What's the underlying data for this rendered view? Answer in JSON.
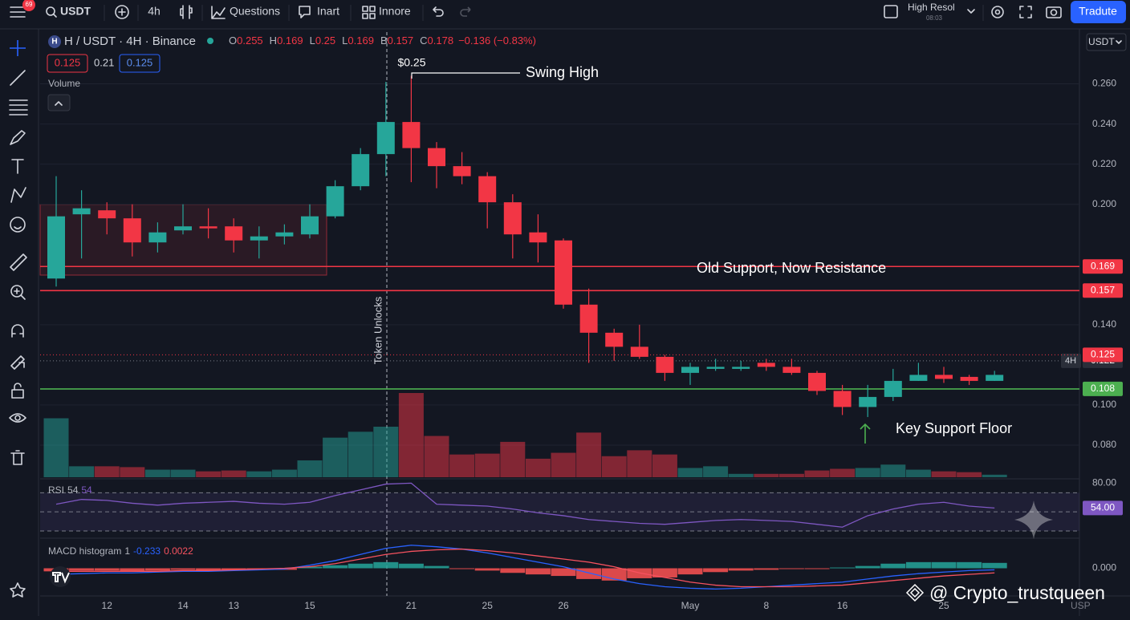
{
  "toolbar": {
    "badge": "69",
    "symbol": "USDT",
    "interval": "4h",
    "items": [
      "Questions",
      "Inart",
      "Innore"
    ],
    "layout": "High Resol",
    "time": "08:03",
    "button": "Tradute"
  },
  "chart_data": {
    "type": "candlestick",
    "title": "H / USDT · 4H · Binance",
    "ohlc": [
      {
        "key": "O",
        "value": "0.255"
      },
      {
        "key": "H",
        "value": "0.169"
      },
      {
        "key": "L",
        "value": "0.25"
      },
      {
        "key": "L",
        "value": "0.169"
      },
      {
        "key": "B",
        "value": "0.157"
      },
      {
        "key": "C",
        "value": "0.178"
      }
    ],
    "change": "−0.136 (−0.83%)",
    "indicator_boxes": [
      "0.125",
      "0.21",
      "0.125"
    ],
    "currency": "USDT",
    "currency_corner": "USP",
    "up_color": "#26a69a",
    "down_color": "#f23645",
    "categories": [
      null,
      null,
      "12",
      null,
      null,
      "14",
      null,
      "13",
      null,
      null,
      "15",
      null,
      null,
      null,
      "21",
      null,
      null,
      "25",
      null,
      null,
      "26",
      null,
      null,
      null,
      null,
      "May",
      null,
      null,
      "8",
      null,
      null,
      "16",
      null,
      null,
      null,
      "25",
      null,
      null
    ],
    "open": [
      0.163,
      0.195,
      0.197,
      0.193,
      0.181,
      0.187,
      0.189,
      0.189,
      0.182,
      0.184,
      0.185,
      0.194,
      0.209,
      0.225,
      0.241,
      0.228,
      0.219,
      0.214,
      0.201,
      0.186,
      0.182,
      0.15,
      0.136,
      0.129,
      0.124,
      0.116,
      0.118,
      0.118,
      0.121,
      0.119,
      0.116,
      0.107,
      0.099,
      0.104,
      0.112,
      0.115,
      0.114,
      0.112
    ],
    "high": [
      0.214,
      0.207,
      0.201,
      0.2,
      0.191,
      0.2,
      0.198,
      0.193,
      0.189,
      0.19,
      0.2,
      0.212,
      0.228,
      0.261,
      0.264,
      0.231,
      0.226,
      0.216,
      0.205,
      0.195,
      0.183,
      0.158,
      0.138,
      0.14,
      0.125,
      0.121,
      0.123,
      0.122,
      0.123,
      0.123,
      0.117,
      0.11,
      0.11,
      0.118,
      0.121,
      0.119,
      0.115,
      0.117
    ],
    "low": [
      0.159,
      0.173,
      0.185,
      0.174,
      0.176,
      0.185,
      0.183,
      0.176,
      0.173,
      0.18,
      0.183,
      0.193,
      0.207,
      0.214,
      0.211,
      0.208,
      0.21,
      0.188,
      0.173,
      0.171,
      0.148,
      0.121,
      0.122,
      0.123,
      0.112,
      0.11,
      0.117,
      0.117,
      0.117,
      0.115,
      0.105,
      0.095,
      0.094,
      0.102,
      0.112,
      0.111,
      0.11,
      0.112
    ],
    "close": [
      0.194,
      0.198,
      0.193,
      0.181,
      0.186,
      0.189,
      0.188,
      0.182,
      0.184,
      0.186,
      0.194,
      0.209,
      0.225,
      0.241,
      0.228,
      0.219,
      0.214,
      0.201,
      0.185,
      0.181,
      0.15,
      0.136,
      0.129,
      0.124,
      0.116,
      0.119,
      0.119,
      0.119,
      0.119,
      0.116,
      0.107,
      0.099,
      0.104,
      0.112,
      0.115,
      0.113,
      0.112,
      0.115
    ],
    "ylim": [
      0.064,
      0.285
    ],
    "yticks": [
      {
        "value": 0.26,
        "label": "0.260"
      },
      {
        "value": 0.24,
        "label": "0.240"
      },
      {
        "value": 0.22,
        "label": "0.220"
      },
      {
        "value": 0.2,
        "label": "0.200"
      },
      {
        "value": 0.14,
        "label": "0.140"
      },
      {
        "value": 0.1,
        "label": "0.100"
      },
      {
        "value": 0.08,
        "label": "0.080"
      }
    ],
    "grid": true,
    "price_lines": [
      {
        "value": 0.169,
        "color": "#f23645",
        "style": "solid"
      },
      {
        "value": 0.157,
        "color": "#f23645",
        "style": "solid"
      },
      {
        "value": 0.108,
        "color": "#4caf50",
        "style": "solid"
      },
      {
        "value": 0.122,
        "color": "#787b86",
        "style": "dotted",
        "tag": "4H"
      },
      {
        "value": 0.125,
        "color": "#f23645",
        "style": "dotted"
      }
    ],
    "annotations": {
      "high_price": "$0.25",
      "swing": "Swing High",
      "resistance": "Old Support, Now Resistance",
      "support": "Key Support Floor",
      "event": "Token Unlocks"
    },
    "volume": {
      "label": "Volume",
      "values": [
        70,
        13,
        13,
        12,
        9,
        9,
        7,
        8,
        7,
        9,
        20,
        47,
        54,
        60,
        100,
        49,
        27,
        28,
        42,
        22,
        29,
        53,
        25,
        32,
        27,
        11,
        13,
        4,
        4,
        4,
        8,
        10,
        11,
        15,
        9,
        7,
        6,
        3
      ]
    },
    "rsi": {
      "label": "RSI",
      "length": "54",
      "value_text": "54",
      "color": "#7e57c2",
      "values": [
        58,
        63,
        62,
        59,
        57,
        59,
        60,
        61,
        59,
        58,
        60,
        67,
        73,
        79,
        80,
        58,
        57,
        56,
        53,
        49,
        46,
        42,
        40,
        38,
        37,
        39,
        41,
        42,
        41,
        40,
        37,
        34,
        46,
        53,
        58,
        60,
        56,
        54
      ],
      "ylim": [
        25,
        82
      ],
      "yticks": [
        {
          "value": 80,
          "label": "80.00"
        }
      ],
      "levels": [
        70,
        50,
        30
      ],
      "last": {
        "value": 54,
        "label": "54.00"
      }
    },
    "macd": {
      "label": "MACD histogram",
      "length": "1",
      "macd_text": "-0.233",
      "signal_text": "0.0022",
      "macd_color": "#2962ff",
      "signal_color": "#f7525f",
      "histogram": [
        -0.004,
        -0.003,
        -0.003,
        -0.004,
        -0.003,
        -0.002,
        -0.003,
        -0.003,
        -0.002,
        -0.002,
        0.002,
        0.004,
        0.006,
        0.008,
        0.006,
        0.003,
        -0.001,
        -0.003,
        -0.006,
        -0.008,
        -0.01,
        -0.014,
        -0.016,
        -0.013,
        -0.012,
        -0.008,
        -0.005,
        -0.003,
        -0.002,
        -0.001,
        -0.001,
        0.001,
        0.003,
        0.006,
        0.008,
        0.008,
        0.008,
        0.007
      ],
      "macd": [
        -0.008,
        -0.007,
        -0.006,
        -0.006,
        -0.005,
        -0.004,
        -0.004,
        -0.003,
        -0.002,
        -0.001,
        0.004,
        0.01,
        0.018,
        0.026,
        0.03,
        0.028,
        0.025,
        0.02,
        0.014,
        0.008,
        0.002,
        -0.006,
        -0.014,
        -0.02,
        -0.024,
        -0.026,
        -0.027,
        -0.026,
        -0.024,
        -0.022,
        -0.02,
        -0.018,
        -0.014,
        -0.01,
        -0.007,
        -0.005,
        -0.003,
        -0.002
      ],
      "signal": [
        -0.004,
        -0.004,
        -0.004,
        -0.004,
        -0.004,
        -0.003,
        -0.003,
        -0.002,
        -0.001,
        0.0,
        0.002,
        0.006,
        0.012,
        0.018,
        0.022,
        0.024,
        0.025,
        0.023,
        0.02,
        0.016,
        0.012,
        0.008,
        0.002,
        -0.006,
        -0.012,
        -0.018,
        -0.022,
        -0.024,
        -0.024,
        -0.024,
        -0.023,
        -0.022,
        -0.019,
        -0.016,
        -0.013,
        -0.01,
        -0.008,
        -0.006
      ],
      "ylim": [
        -0.035,
        0.035
      ],
      "yticks": [
        {
          "value": 0,
          "label": "0.000"
        }
      ]
    }
  },
  "watermark": "@ Crypto_trustqueen"
}
